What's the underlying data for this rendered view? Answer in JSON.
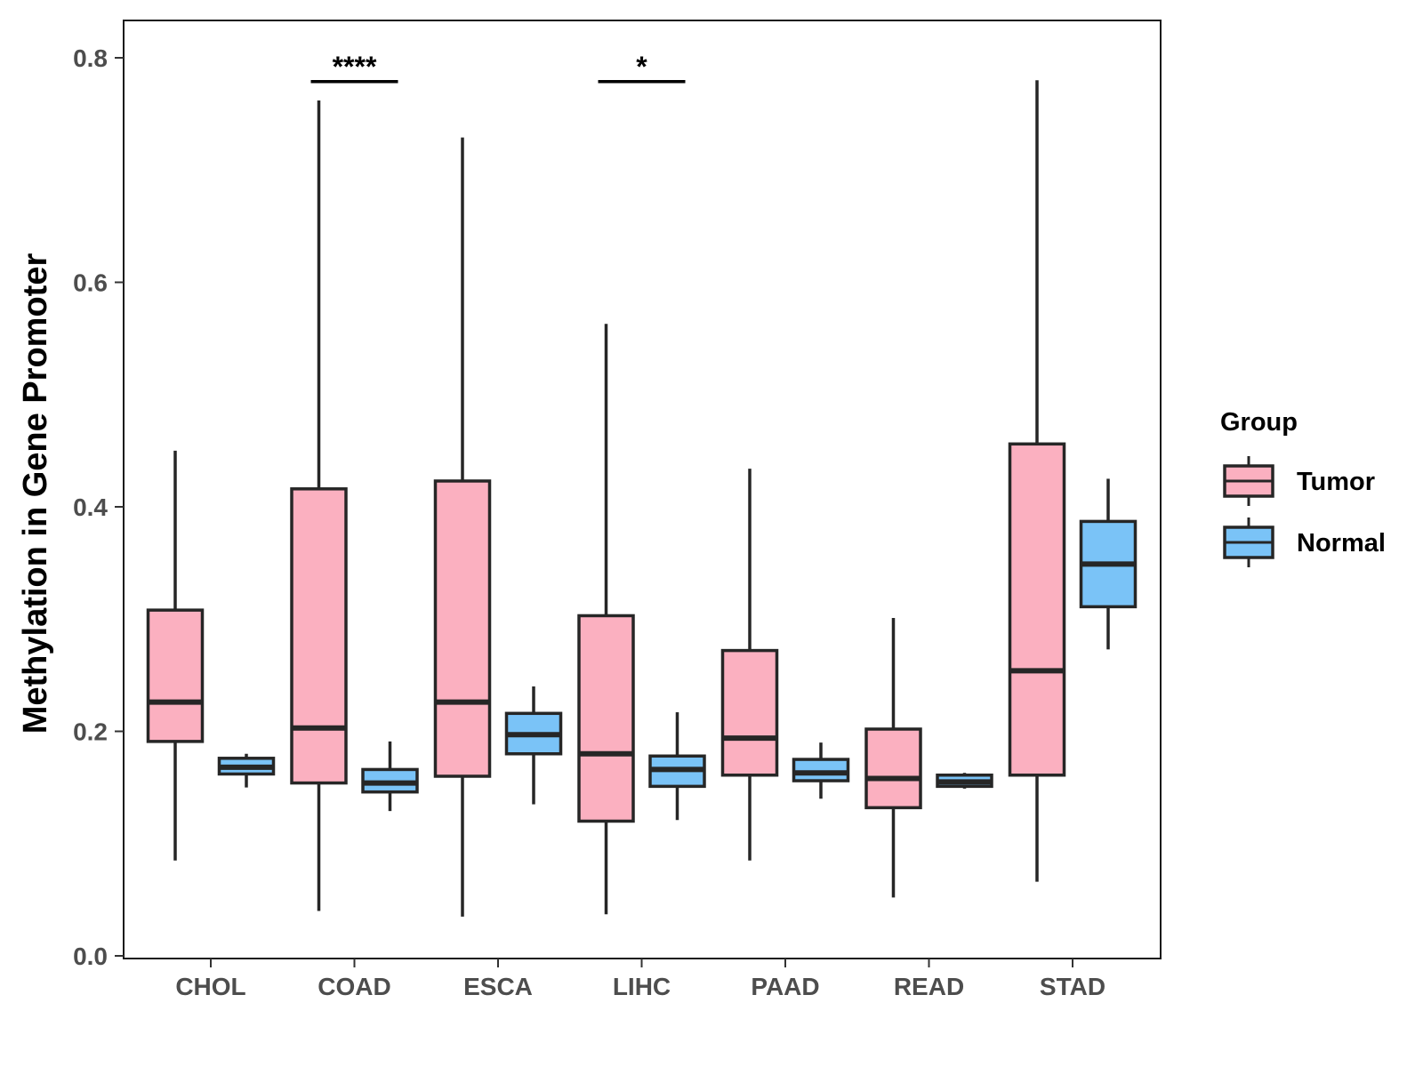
{
  "chart_data": {
    "type": "boxplot",
    "title": "",
    "xlabel": "",
    "ylabel": "Methylation in Gene Promoter",
    "ylim": [
      0,
      0.8
    ],
    "yticks": [
      "0.0",
      "0.2",
      "0.4",
      "0.6",
      "0.8"
    ],
    "ytick_values": [
      0,
      0.2,
      0.4,
      0.6,
      0.8
    ],
    "categories": [
      "CHOL",
      "COAD",
      "ESCA",
      "LIHC",
      "PAAD",
      "READ",
      "STAD"
    ],
    "grid": false,
    "legend": {
      "title": "Group",
      "placement": "right",
      "entries": [
        "Tumor",
        "Normal"
      ]
    },
    "colors": {
      "Tumor": "#fbb0c0",
      "Normal": "#7ac3f7",
      "stroke": "#262626"
    },
    "series": [
      {
        "name": "Tumor",
        "boxes": [
          {
            "category": "CHOL",
            "whisker_low": 0.085,
            "q1": 0.191,
            "median": 0.226,
            "q3": 0.308,
            "whisker_high": 0.45
          },
          {
            "category": "COAD",
            "whisker_low": 0.04,
            "q1": 0.154,
            "median": 0.203,
            "q3": 0.416,
            "whisker_high": 0.762
          },
          {
            "category": "ESCA",
            "whisker_low": 0.035,
            "q1": 0.16,
            "median": 0.226,
            "q3": 0.423,
            "whisker_high": 0.729
          },
          {
            "category": "LIHC",
            "whisker_low": 0.037,
            "q1": 0.12,
            "median": 0.18,
            "q3": 0.303,
            "whisker_high": 0.563
          },
          {
            "category": "PAAD",
            "whisker_low": 0.085,
            "q1": 0.161,
            "median": 0.194,
            "q3": 0.272,
            "whisker_high": 0.434
          },
          {
            "category": "READ",
            "whisker_low": 0.052,
            "q1": 0.132,
            "median": 0.158,
            "q3": 0.202,
            "whisker_high": 0.301
          },
          {
            "category": "STAD",
            "whisker_low": 0.066,
            "q1": 0.161,
            "median": 0.254,
            "q3": 0.456,
            "whisker_high": 0.78
          }
        ]
      },
      {
        "name": "Normal",
        "boxes": [
          {
            "category": "CHOL",
            "whisker_low": 0.15,
            "q1": 0.162,
            "median": 0.168,
            "q3": 0.176,
            "whisker_high": 0.18
          },
          {
            "category": "COAD",
            "whisker_low": 0.129,
            "q1": 0.146,
            "median": 0.154,
            "q3": 0.166,
            "whisker_high": 0.191
          },
          {
            "category": "ESCA",
            "whisker_low": 0.135,
            "q1": 0.18,
            "median": 0.197,
            "q3": 0.216,
            "whisker_high": 0.24
          },
          {
            "category": "LIHC",
            "whisker_low": 0.121,
            "q1": 0.151,
            "median": 0.166,
            "q3": 0.178,
            "whisker_high": 0.217
          },
          {
            "category": "PAAD",
            "whisker_low": 0.14,
            "q1": 0.156,
            "median": 0.163,
            "q3": 0.175,
            "whisker_high": 0.19
          },
          {
            "category": "READ",
            "whisker_low": 0.149,
            "q1": 0.151,
            "median": 0.155,
            "q3": 0.161,
            "whisker_high": 0.163
          },
          {
            "category": "STAD",
            "whisker_low": 0.273,
            "q1": 0.311,
            "median": 0.349,
            "q3": 0.387,
            "whisker_high": 0.425
          }
        ]
      }
    ],
    "annotations": [
      {
        "category": "COAD",
        "label": "****",
        "y": 0.778
      },
      {
        "category": "LIHC",
        "label": "*",
        "y": 0.778
      }
    ]
  }
}
